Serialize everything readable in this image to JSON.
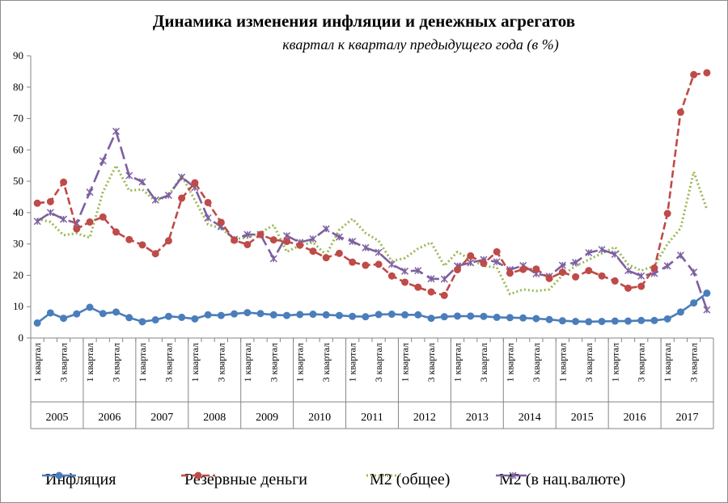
{
  "chart_data": {
    "type": "line",
    "title": "Динамика изменения инфляции  и денежных агрегатов",
    "subtitle": "квартал к кварталу предыдущего года (в %)",
    "ylim": [
      0,
      90
    ],
    "yticks": [
      0,
      10,
      20,
      30,
      40,
      50,
      60,
      70,
      80,
      90
    ],
    "quarter_labels": [
      "1 квартал",
      "3 квартал"
    ],
    "years": [
      "2005",
      "2006",
      "2007",
      "2008",
      "2009",
      "2010",
      "2011",
      "2012",
      "2013",
      "2014",
      "2015",
      "2016",
      "2017"
    ],
    "grid": false,
    "legend_position": "bottom",
    "series": [
      {
        "name": "Инфляция",
        "color": "#4a7ebb",
        "style": "solid-circle",
        "values": [
          4.8,
          8.0,
          6.3,
          7.7,
          9.8,
          7.8,
          8.3,
          6.5,
          5.2,
          5.8,
          6.9,
          6.6,
          6.1,
          7.4,
          7.2,
          7.7,
          8.1,
          7.8,
          7.4,
          7.2,
          7.5,
          7.6,
          7.4,
          7.2,
          6.9,
          6.8,
          7.5,
          7.6,
          7.4,
          7.4,
          6.3,
          6.8,
          7.0,
          7.0,
          6.9,
          6.6,
          6.5,
          6.4,
          6.2,
          5.9,
          5.5,
          5.3,
          5.2,
          5.3,
          5.4,
          5.4,
          5.6,
          5.6,
          6.1,
          8.3,
          11.2,
          14.3
        ]
      },
      {
        "name": "Резервные деньги",
        "color": "#be4b48",
        "style": "dashed-circle",
        "values": [
          43.0,
          43.5,
          49.7,
          34.8,
          37.0,
          38.6,
          33.8,
          31.4,
          29.7,
          26.9,
          31.0,
          44.6,
          49.5,
          43.2,
          36.9,
          31.2,
          29.8,
          33.0,
          31.3,
          30.8,
          29.6,
          27.7,
          25.6,
          27.0,
          24.2,
          23.2,
          23.5,
          19.8,
          17.8,
          16.2,
          14.7,
          13.6,
          21.8,
          26.2,
          23.8,
          27.5,
          20.7,
          21.9,
          22.0,
          19.0,
          21.0,
          19.5,
          21.5,
          19.8,
          18.2,
          15.9,
          16.5,
          22.3,
          39.7,
          72.0,
          84.0,
          84.6
        ]
      },
      {
        "name": "М2 (общее)",
        "color": "#98b954",
        "style": "dotted",
        "values": [
          38.0,
          37.0,
          32.8,
          33.4,
          32.0,
          46.6,
          55.0,
          47.0,
          47.4,
          43.6,
          45.5,
          51.7,
          44.0,
          36.2,
          35.0,
          31.6,
          32.0,
          33.6,
          36.0,
          27.5,
          29.5,
          30.5,
          26.5,
          34.5,
          38.0,
          33.5,
          31.0,
          24.5,
          25.5,
          28.5,
          30.5,
          23.0,
          27.5,
          25.0,
          23.0,
          22.5,
          14.0,
          15.5,
          15.0,
          15.5,
          20.0,
          23.0,
          25.0,
          27.0,
          29.0,
          23.5,
          21.5,
          23.0,
          30.0,
          35.0,
          53.0,
          41.0
        ]
      },
      {
        "name": "М2 (в нац.валюте)",
        "color": "#7d60a0",
        "style": "dashed-star",
        "values": [
          37.2,
          40.0,
          37.9,
          36.6,
          46.5,
          56.5,
          65.9,
          51.8,
          49.8,
          44.0,
          45.5,
          51.3,
          48.0,
          38.3,
          35.5,
          31.5,
          33.0,
          33.0,
          25.3,
          32.6,
          30.5,
          31.6,
          34.8,
          32.2,
          30.8,
          28.8,
          27.3,
          23.5,
          21.3,
          21.5,
          18.9,
          18.8,
          23.0,
          24.0,
          25.0,
          24.3,
          21.8,
          23.1,
          20.5,
          19.7,
          23.2,
          24.1,
          27.2,
          28.2,
          26.7,
          21.5,
          19.8,
          20.6,
          23.0,
          26.4,
          21.0,
          9.0
        ]
      }
    ]
  }
}
